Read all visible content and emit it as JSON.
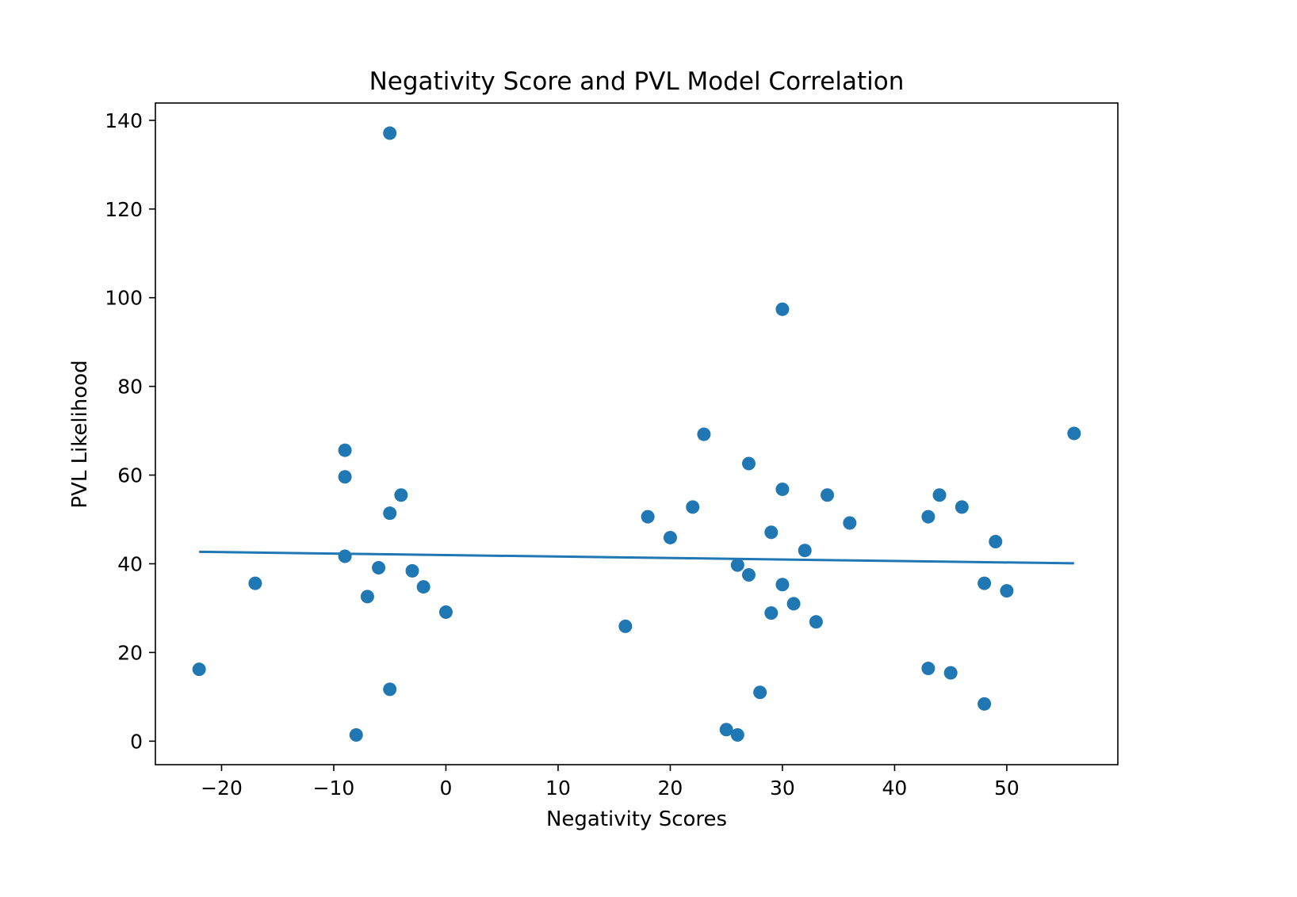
{
  "chart_data": {
    "type": "scatter",
    "title": "Negativity Score and PVL Model Correlation",
    "xlabel": "Negativity Scores",
    "ylabel": "PVL Likelihood",
    "xlim": [
      -25.9,
      59.9
    ],
    "ylim": [
      -5.3,
      143.9
    ],
    "xticks": [
      -20,
      -10,
      0,
      10,
      20,
      30,
      40,
      50
    ],
    "xtick_labels": [
      "−20",
      "−10",
      "0",
      "10",
      "20",
      "30",
      "40",
      "50"
    ],
    "yticks": [
      0,
      20,
      40,
      60,
      80,
      100,
      120,
      140
    ],
    "ytick_labels": [
      "0",
      "20",
      "40",
      "60",
      "80",
      "100",
      "120",
      "140"
    ],
    "grid": false,
    "color": "#1f77b4",
    "points": [
      {
        "x": -22,
        "y": 16.2
      },
      {
        "x": -17,
        "y": 35.6
      },
      {
        "x": -9,
        "y": 65.6
      },
      {
        "x": -9,
        "y": 59.6
      },
      {
        "x": -9,
        "y": 41.7
      },
      {
        "x": -8,
        "y": 1.4
      },
      {
        "x": -7,
        "y": 32.6
      },
      {
        "x": -6,
        "y": 39.1
      },
      {
        "x": -5,
        "y": 137.1
      },
      {
        "x": -5,
        "y": 51.4
      },
      {
        "x": -5,
        "y": 11.7
      },
      {
        "x": -4,
        "y": 55.5
      },
      {
        "x": -3,
        "y": 38.4
      },
      {
        "x": -2,
        "y": 34.8
      },
      {
        "x": 0,
        "y": 29.1
      },
      {
        "x": 16,
        "y": 25.9
      },
      {
        "x": 18,
        "y": 50.6
      },
      {
        "x": 20,
        "y": 45.9
      },
      {
        "x": 22,
        "y": 52.8
      },
      {
        "x": 23,
        "y": 69.2
      },
      {
        "x": 25,
        "y": 2.6
      },
      {
        "x": 26,
        "y": 39.7
      },
      {
        "x": 26,
        "y": 1.4
      },
      {
        "x": 27,
        "y": 62.6
      },
      {
        "x": 27,
        "y": 37.5
      },
      {
        "x": 28,
        "y": 11.0
      },
      {
        "x": 29,
        "y": 47.1
      },
      {
        "x": 29,
        "y": 28.9
      },
      {
        "x": 30,
        "y": 97.4
      },
      {
        "x": 30,
        "y": 56.8
      },
      {
        "x": 30,
        "y": 35.3
      },
      {
        "x": 31,
        "y": 31.0
      },
      {
        "x": 32,
        "y": 43.0
      },
      {
        "x": 33,
        "y": 26.9
      },
      {
        "x": 34,
        "y": 55.5
      },
      {
        "x": 36,
        "y": 49.2
      },
      {
        "x": 43,
        "y": 50.6
      },
      {
        "x": 43,
        "y": 16.4
      },
      {
        "x": 44,
        "y": 55.5
      },
      {
        "x": 45,
        "y": 15.4
      },
      {
        "x": 46,
        "y": 52.8
      },
      {
        "x": 48,
        "y": 35.6
      },
      {
        "x": 48,
        "y": 8.4
      },
      {
        "x": 49,
        "y": 45.0
      },
      {
        "x": 50,
        "y": 33.9
      },
      {
        "x": 56,
        "y": 69.4
      }
    ],
    "trendline": {
      "x": [
        -22,
        56
      ],
      "y": [
        42.7,
        40.1
      ]
    }
  }
}
